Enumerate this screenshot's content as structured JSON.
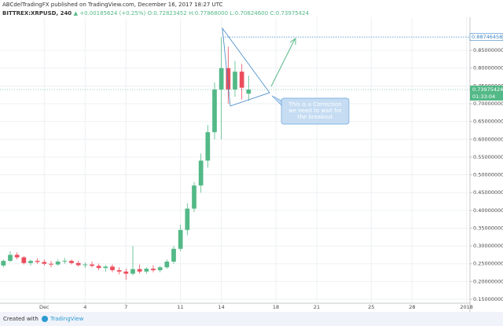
{
  "chart_data": {
    "type": "candlestick",
    "title": "ABCdelTradingFX published on TradingView.com, December 16, 2017 18:27 UTC",
    "symbol": "BITTREX:XRPUSD, 240",
    "change": "▲ +0.00185624 (+0.25%)",
    "ohlc_text": [
      "O:0.72823452",
      "H:0.77868000",
      "L:0.70824600",
      "C:0.73975424"
    ],
    "categories": [
      null,
      null,
      null,
      null,
      null,
      null,
      "Dec",
      null,
      null,
      null,
      null,
      null,
      "4",
      null,
      null,
      null,
      null,
      null,
      "7",
      null,
      null,
      null,
      null,
      null,
      null,
      null,
      "11",
      null,
      null,
      null,
      null,
      null,
      "14",
      null,
      null,
      null,
      null,
      null,
      null,
      null,
      "18",
      null,
      null,
      null,
      null,
      null,
      "21",
      null,
      null,
      null,
      null,
      null,
      null,
      null,
      "25",
      null,
      null,
      null,
      null,
      null,
      "28",
      null,
      null,
      null,
      null,
      null,
      null,
      null,
      "2018"
    ],
    "open": [
      0.245,
      0.258,
      0.275,
      0.268,
      0.252,
      0.258,
      0.255,
      0.25,
      0.248,
      0.256,
      0.258,
      0.252,
      0.246,
      0.248,
      0.244,
      0.238,
      0.242,
      0.232,
      0.228,
      0.222,
      0.235,
      0.228,
      0.236,
      0.232,
      0.24,
      0.256,
      0.292,
      0.345,
      0.405,
      0.47,
      0.54,
      0.62,
      0.74,
      0.8,
      0.74,
      0.79,
      0.72823452,
      null,
      null,
      null,
      null,
      null,
      null,
      null,
      null,
      null,
      null,
      null,
      null,
      null,
      null,
      null,
      null,
      null,
      null,
      null,
      null,
      null,
      null,
      null,
      null,
      null,
      null,
      null,
      null,
      null,
      null,
      null,
      null
    ],
    "high": [
      0.262,
      0.285,
      0.282,
      0.272,
      0.262,
      0.265,
      0.262,
      0.258,
      0.262,
      0.266,
      0.262,
      0.258,
      0.254,
      0.256,
      0.25,
      0.246,
      0.248,
      0.24,
      0.236,
      0.3,
      0.248,
      0.24,
      0.246,
      0.244,
      0.262,
      0.3,
      0.36,
      0.42,
      0.48,
      0.56,
      0.64,
      0.76,
      0.887,
      0.86,
      0.82,
      0.812,
      0.77868,
      null,
      null,
      null,
      null,
      null,
      null,
      null,
      null,
      null,
      null,
      null,
      null,
      null,
      null,
      null,
      null,
      null,
      null,
      null,
      null,
      null,
      null,
      null,
      null,
      null,
      null,
      null,
      null,
      null,
      null,
      null,
      null
    ],
    "low": [
      0.24,
      0.255,
      0.262,
      0.248,
      0.245,
      0.25,
      0.245,
      0.24,
      0.244,
      0.25,
      0.248,
      0.242,
      0.238,
      0.24,
      0.232,
      0.228,
      0.226,
      0.22,
      0.205,
      0.218,
      0.222,
      0.222,
      0.226,
      0.226,
      0.236,
      0.25,
      0.285,
      0.33,
      0.395,
      0.45,
      0.52,
      0.6,
      0.6,
      0.7,
      0.72,
      0.712,
      0.708246,
      null,
      null,
      null,
      null,
      null,
      null,
      null,
      null,
      null,
      null,
      null,
      null,
      null,
      null,
      null,
      null,
      null,
      null,
      null,
      null,
      null,
      null,
      null,
      null,
      null,
      null,
      null,
      null,
      null,
      null,
      null,
      null
    ],
    "close": [
      0.258,
      0.275,
      0.268,
      0.252,
      0.258,
      0.255,
      0.25,
      0.248,
      0.256,
      0.258,
      0.252,
      0.246,
      0.248,
      0.244,
      0.238,
      0.242,
      0.232,
      0.228,
      0.222,
      0.235,
      0.228,
      0.236,
      0.232,
      0.24,
      0.256,
      0.292,
      0.345,
      0.405,
      0.47,
      0.54,
      0.62,
      0.74,
      0.8,
      0.74,
      0.79,
      0.745,
      0.73975424,
      null,
      null,
      null,
      null,
      null,
      null,
      null,
      null,
      null,
      null,
      null,
      null,
      null,
      null,
      null,
      null,
      null,
      null,
      null,
      null,
      null,
      null,
      null,
      null,
      null,
      null,
      null,
      null,
      null,
      null,
      null,
      null
    ],
    "up_color": "#53b987",
    "down_color": "#eb4d5c",
    "ylim": [
      0.139,
      0.943
    ],
    "yticks": [
      {
        "value": 0.15,
        "label": "0.15000000"
      },
      {
        "value": 0.2,
        "label": "0.20000000"
      },
      {
        "value": 0.25,
        "label": "0.25000000"
      },
      {
        "value": 0.3,
        "label": "0.30000000"
      },
      {
        "value": 0.35,
        "label": "0.35000000"
      },
      {
        "value": 0.4,
        "label": "0.40000000"
      },
      {
        "value": 0.45,
        "label": "0.45000000"
      },
      {
        "value": 0.5,
        "label": "0.50000000"
      },
      {
        "value": 0.55,
        "label": "0.55000000"
      },
      {
        "value": 0.6,
        "label": "0.60000000"
      },
      {
        "value": 0.65,
        "label": "0.65000000"
      },
      {
        "value": 0.7,
        "label": "0.70000000"
      },
      {
        "value": 0.75,
        "label": "0.75000000"
      },
      {
        "value": 0.8,
        "label": "0.80000000"
      },
      {
        "value": 0.85,
        "label": "0.85000000"
      }
    ],
    "grid": true,
    "high_line": 0.88746458,
    "last_price": 0.73975424,
    "countdown": "01:33:04",
    "annotation": [
      "This is a Correction",
      "we need to wait for",
      "the breakout"
    ],
    "footer": [
      "Created with",
      "TradingView"
    ]
  }
}
